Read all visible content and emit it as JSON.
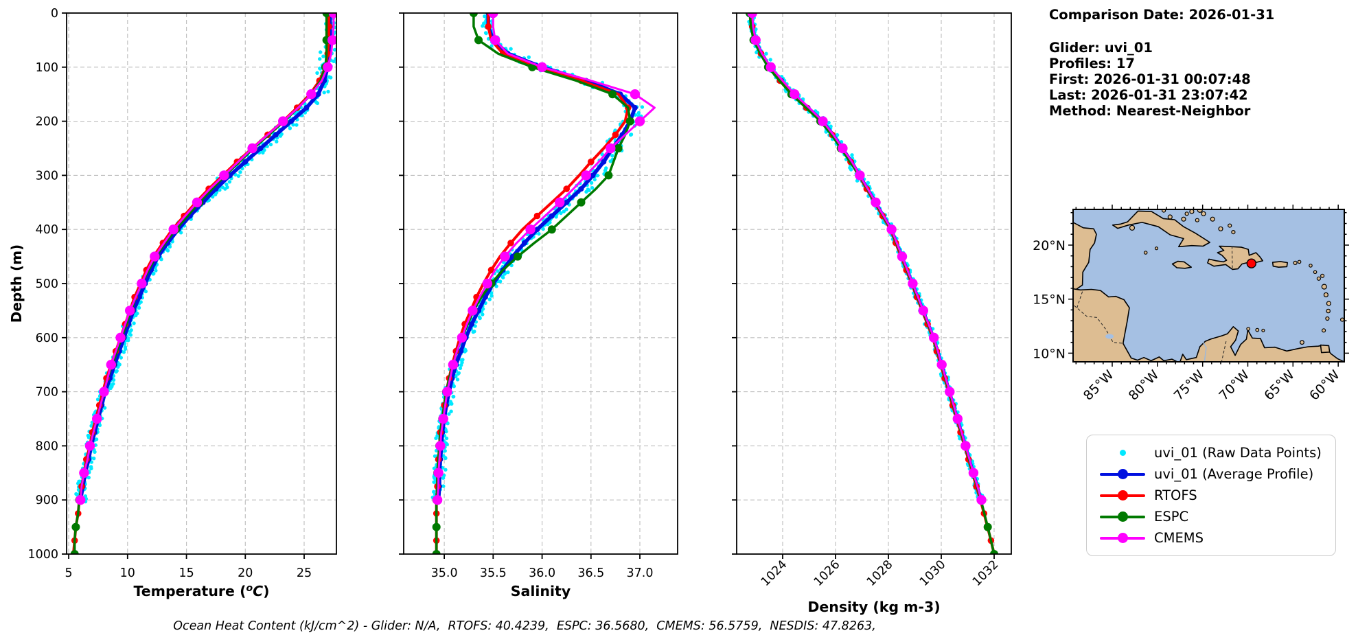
{
  "info_panel": {
    "comparison_date": "Comparison Date: 2026-01-31",
    "glider": "Glider: uvi_01",
    "profiles": "Profiles: 17",
    "first": "First: 2026-01-31 00:07:48",
    "last": "Last: 2026-01-31 23:07:42",
    "method": "Method: Nearest-Neighbor"
  },
  "footer": {
    "ohc_line": "Ocean Heat Content (kJ/cm^2) - Glider: N/A,  RTOFS: 40.4239,  ESPC: 36.5680,  CMEMS: 56.5759,  NESDIS: 47.8263,"
  },
  "legend": {
    "position": "lower-right",
    "entries": [
      {
        "label": "uvi_01 (Raw Data Points)",
        "color": "#00e8ff",
        "marker": "dot-small",
        "line": false
      },
      {
        "label": "uvi_01 (Average Profile)",
        "color": "#0010e0",
        "marker": "dot",
        "line": true
      },
      {
        "label": "RTOFS",
        "color": "#ff0000",
        "marker": "dot",
        "line": true
      },
      {
        "label": "ESPC",
        "color": "#007a00",
        "marker": "dot",
        "line": true
      },
      {
        "label": "CMEMS",
        "color": "#ff00ff",
        "marker": "dot",
        "line": true
      }
    ]
  },
  "map": {
    "region": "Caribbean Sea",
    "lon_range": [
      -89.33,
      -59.33
    ],
    "lat_range": [
      9.2,
      23.3
    ],
    "xticks": [
      -85,
      -80,
      -75,
      -70,
      -65,
      -60
    ],
    "xtick_labels": [
      "85°W",
      "80°W",
      "75°W",
      "70°W",
      "65°W",
      "60°W"
    ],
    "yticks": [
      20,
      15,
      10
    ],
    "ytick_labels": [
      "20°N",
      "15°N",
      "10°N"
    ],
    "marker": {
      "lon": -69.6,
      "lat": 18.3,
      "color": "#ff0000"
    },
    "ocean_color": "#a5c0e3",
    "land_color": "#ddbd92"
  },
  "chart_data": [
    {
      "id": "temperature",
      "type": "line",
      "xlabel": "Temperature (°C)",
      "xlabel_parts": {
        "prefix": "Temperature (",
        "sup": "o",
        "base": "C",
        "suffix": ")"
      },
      "ylabel": "Depth (m)",
      "xlim": [
        4.82,
        27.74
      ],
      "xticks": [
        5,
        10,
        15,
        20,
        25
      ],
      "xtick_labels": [
        "5",
        "10",
        "15",
        "20",
        "25"
      ],
      "xtick_rotation": 0,
      "ylim": [
        0,
        1000
      ],
      "yticks": [
        0,
        100,
        200,
        300,
        400,
        500,
        600,
        700,
        800,
        900,
        1000
      ],
      "ytick_labels": [
        "0",
        "100",
        "200",
        "300",
        "400",
        "500",
        "600",
        "700",
        "800",
        "900",
        "1000"
      ],
      "show_ytick_labels": true,
      "grid": true,
      "depth_step": 25,
      "raw": {
        "label": "uvi_01 (Raw Data Points)",
        "color": "#00e8ff",
        "band": 0.45
      },
      "series": [
        {
          "name": "uvi_01 (Average Profile)",
          "color": "#0010e0",
          "width": 5.5,
          "marker_r": 4,
          "marker_every": 1,
          "marker_phase": 0,
          "values": [
            27.2,
            27.2,
            27.2,
            27.1,
            27.0,
            26.7,
            26.2,
            25.2,
            23.9,
            22.6,
            21.3,
            20.0,
            18.7,
            17.5,
            16.4,
            15.3,
            14.3,
            13.4,
            12.6,
            12.0,
            11.5,
            11.0,
            10.5,
            10.1,
            9.7,
            9.3,
            8.9,
            8.5,
            8.1,
            7.8,
            7.5,
            7.2,
            6.9,
            6.7,
            6.4,
            6.2,
            6.0
          ]
        },
        {
          "name": "RTOFS",
          "color": "#ff0000",
          "width": 4,
          "marker_r": 4.8,
          "marker_every": 2,
          "marker_phase": 1,
          "values": [
            27.1,
            27.1,
            27.1,
            27.0,
            26.8,
            26.3,
            25.5,
            24.4,
            23.2,
            21.9,
            20.6,
            19.3,
            18.1,
            16.9,
            15.8,
            14.8,
            13.8,
            13.0,
            12.2,
            11.6,
            11.1,
            10.6,
            10.2,
            9.8,
            9.4,
            9.0,
            8.6,
            8.2,
            7.9,
            7.6,
            7.3,
            7.0,
            6.8,
            6.5,
            6.3,
            6.1,
            5.9,
            5.8,
            5.6,
            5.5,
            5.4
          ]
        },
        {
          "name": "ESPC",
          "color": "#007a00",
          "width": 3.5,
          "marker_r": 6,
          "marker_every": 2,
          "marker_phase": 0,
          "values": [
            26.9,
            26.9,
            26.9,
            26.9,
            26.8,
            26.4,
            25.6,
            24.5,
            23.3,
            22.0,
            20.7,
            19.5,
            18.3,
            17.2,
            16.1,
            15.1,
            14.1,
            13.2,
            12.4,
            11.8,
            11.2,
            10.7,
            10.3,
            9.9,
            9.5,
            9.1,
            8.7,
            8.3,
            8.0,
            7.7,
            7.4,
            7.1,
            6.8,
            6.6,
            6.3,
            6.1,
            5.9,
            5.8,
            5.6,
            5.5,
            5.5
          ]
        },
        {
          "name": "CMEMS",
          "color": "#ff00ff",
          "width": 3,
          "marker_r": 7.2,
          "marker_every": 2,
          "marker_phase": 0,
          "values": [
            27.5,
            27.5,
            27.4,
            27.3,
            27.0,
            26.5,
            25.6,
            24.5,
            23.2,
            21.9,
            20.6,
            19.4,
            18.2,
            17.0,
            15.9,
            14.9,
            13.9,
            13.1,
            12.3,
            11.7,
            11.2,
            10.7,
            10.2,
            9.8,
            9.4,
            9.0,
            8.6,
            8.3,
            8.0,
            7.7,
            7.4,
            7.1,
            6.8,
            6.6,
            6.3,
            6.1,
            6.0
          ]
        }
      ]
    },
    {
      "id": "salinity",
      "type": "line",
      "xlabel": "Salinity",
      "xlim": [
        34.585,
        37.386
      ],
      "xticks": [
        35.0,
        35.5,
        36.0,
        36.5,
        37.0
      ],
      "xtick_labels": [
        "35.0",
        "35.5",
        "36.0",
        "36.5",
        "37.0"
      ],
      "xtick_rotation": 0,
      "ylim": [
        0,
        1000
      ],
      "yticks": [
        0,
        100,
        200,
        300,
        400,
        500,
        600,
        700,
        800,
        900,
        1000
      ],
      "ytick_labels": [
        "0",
        "100",
        "200",
        "300",
        "400",
        "500",
        "600",
        "700",
        "800",
        "900",
        "1000"
      ],
      "show_ytick_labels": false,
      "grid": true,
      "depth_step": 25,
      "raw": {
        "label": "uvi_01 (Raw Data Points)",
        "color": "#00e8ff",
        "band": 0.06
      },
      "series": [
        {
          "name": "uvi_01 (Average Profile)",
          "color": "#0010e0",
          "width": 5.5,
          "marker_r": 4,
          "marker_every": 1,
          "marker_phase": 0,
          "values": [
            35.45,
            35.45,
            35.5,
            35.65,
            36.0,
            36.45,
            36.8,
            36.95,
            36.9,
            36.82,
            36.72,
            36.63,
            36.52,
            36.4,
            36.25,
            36.1,
            35.95,
            35.82,
            35.7,
            35.6,
            35.5,
            35.42,
            35.35,
            35.28,
            35.22,
            35.17,
            35.12,
            35.08,
            35.05,
            35.02,
            35.0,
            34.98,
            34.97,
            34.96,
            34.95,
            34.95,
            34.94
          ]
        },
        {
          "name": "RTOFS",
          "color": "#ff0000",
          "width": 4,
          "marker_r": 4.8,
          "marker_every": 2,
          "marker_phase": 1,
          "values": [
            35.45,
            35.45,
            35.48,
            35.6,
            35.95,
            36.4,
            36.78,
            36.88,
            36.85,
            36.75,
            36.63,
            36.5,
            36.38,
            36.25,
            36.1,
            35.95,
            35.8,
            35.68,
            35.57,
            35.48,
            35.4,
            35.33,
            35.27,
            35.21,
            35.16,
            35.12,
            35.08,
            35.05,
            35.02,
            35.0,
            34.98,
            34.96,
            34.95,
            34.94,
            34.93,
            34.93,
            34.92,
            34.92,
            34.92,
            34.92,
            34.92
          ]
        },
        {
          "name": "ESPC",
          "color": "#007a00",
          "width": 3.5,
          "marker_r": 6,
          "marker_every": 2,
          "marker_phase": 0,
          "values": [
            35.3,
            35.3,
            35.35,
            35.55,
            35.9,
            36.35,
            36.72,
            36.88,
            36.9,
            36.85,
            36.78,
            36.73,
            36.68,
            36.55,
            36.4,
            36.25,
            36.1,
            35.92,
            35.75,
            35.6,
            35.48,
            35.38,
            35.3,
            35.24,
            35.18,
            35.13,
            35.09,
            35.05,
            35.02,
            35.0,
            34.98,
            34.96,
            34.95,
            34.94,
            34.93,
            34.93,
            34.92,
            34.92,
            34.92,
            34.92,
            34.92
          ]
        },
        {
          "name": "CMEMS",
          "color": "#ff00ff",
          "width": 3,
          "marker_r": 7.2,
          "marker_every": 2,
          "marker_phase": 0,
          "values": [
            35.5,
            35.5,
            35.52,
            35.65,
            36.0,
            36.5,
            36.95,
            37.15,
            37.0,
            36.85,
            36.7,
            36.58,
            36.45,
            36.32,
            36.18,
            36.03,
            35.88,
            35.74,
            35.62,
            35.52,
            35.44,
            35.36,
            35.29,
            35.23,
            35.18,
            35.13,
            35.09,
            35.06,
            35.03,
            35.01,
            34.99,
            34.97,
            34.96,
            34.95,
            34.94,
            34.94,
            34.93
          ]
        }
      ]
    },
    {
      "id": "density",
      "type": "line",
      "xlabel": "Density (kg m-3)",
      "xlim": [
        1022.26,
        1032.65
      ],
      "xticks": [
        1024,
        1026,
        1028,
        1030,
        1032
      ],
      "xtick_labels": [
        "1024",
        "1026",
        "1028",
        "1030",
        "1032"
      ],
      "xtick_rotation": 45,
      "ylim": [
        0,
        1000
      ],
      "yticks": [
        0,
        100,
        200,
        300,
        400,
        500,
        600,
        700,
        800,
        900,
        1000
      ],
      "ytick_labels": [
        "0",
        "100",
        "200",
        "300",
        "400",
        "500",
        "600",
        "700",
        "800",
        "900",
        "1000"
      ],
      "show_ytick_labels": false,
      "grid": true,
      "depth_step": 25,
      "raw": {
        "label": "uvi_01 (Raw Data Points)",
        "color": "#00e8ff",
        "band": 0.11
      },
      "series": [
        {
          "name": "uvi_01 (Average Profile)",
          "color": "#0010e0",
          "width": 5.5,
          "marker_r": 4,
          "marker_every": 1,
          "marker_phase": 0,
          "values": [
            1022.8,
            1022.85,
            1022.95,
            1023.2,
            1023.5,
            1023.95,
            1024.4,
            1024.95,
            1025.5,
            1025.9,
            1026.25,
            1026.6,
            1026.9,
            1027.2,
            1027.5,
            1027.8,
            1028.1,
            1028.3,
            1028.5,
            1028.7,
            1028.9,
            1029.1,
            1029.3,
            1029.5,
            1029.7,
            1029.85,
            1030.0,
            1030.15,
            1030.3,
            1030.45,
            1030.6,
            1030.75,
            1030.9,
            1031.05,
            1031.2,
            1031.35,
            1031.5
          ]
        },
        {
          "name": "RTOFS",
          "color": "#ff0000",
          "width": 4,
          "marker_r": 4.8,
          "marker_every": 2,
          "marker_phase": 1,
          "values": [
            1022.8,
            1022.85,
            1022.95,
            1023.18,
            1023.48,
            1023.9,
            1024.35,
            1024.9,
            1025.45,
            1025.87,
            1026.22,
            1026.57,
            1026.88,
            1027.18,
            1027.48,
            1027.78,
            1028.08,
            1028.28,
            1028.48,
            1028.68,
            1028.88,
            1029.08,
            1029.28,
            1029.48,
            1029.68,
            1029.83,
            1029.98,
            1030.13,
            1030.28,
            1030.43,
            1030.58,
            1030.73,
            1030.88,
            1031.03,
            1031.18,
            1031.33,
            1031.48,
            1031.62,
            1031.75,
            1031.88,
            1032.0
          ]
        },
        {
          "name": "ESPC",
          "color": "#007a00",
          "width": 3.5,
          "marker_r": 6,
          "marker_every": 2,
          "marker_phase": 0,
          "values": [
            1022.75,
            1022.8,
            1022.9,
            1023.15,
            1023.45,
            1023.88,
            1024.33,
            1024.88,
            1025.43,
            1025.85,
            1026.2,
            1026.55,
            1026.9,
            1027.2,
            1027.5,
            1027.8,
            1028.1,
            1028.3,
            1028.5,
            1028.7,
            1028.9,
            1029.1,
            1029.3,
            1029.5,
            1029.7,
            1029.85,
            1030.0,
            1030.15,
            1030.3,
            1030.45,
            1030.6,
            1030.75,
            1030.9,
            1031.05,
            1031.2,
            1031.35,
            1031.5,
            1031.63,
            1031.76,
            1031.88,
            1032.0
          ]
        },
        {
          "name": "CMEMS",
          "color": "#ff00ff",
          "width": 3,
          "marker_r": 7.2,
          "marker_every": 2,
          "marker_phase": 0,
          "values": [
            1022.85,
            1022.88,
            1022.98,
            1023.22,
            1023.55,
            1024.0,
            1024.45,
            1025.0,
            1025.52,
            1025.92,
            1026.27,
            1026.62,
            1026.92,
            1027.22,
            1027.52,
            1027.82,
            1028.12,
            1028.32,
            1028.52,
            1028.72,
            1028.92,
            1029.12,
            1029.32,
            1029.52,
            1029.72,
            1029.87,
            1030.02,
            1030.17,
            1030.32,
            1030.47,
            1030.62,
            1030.77,
            1030.92,
            1031.07,
            1031.22,
            1031.37,
            1031.52
          ]
        }
      ]
    }
  ]
}
